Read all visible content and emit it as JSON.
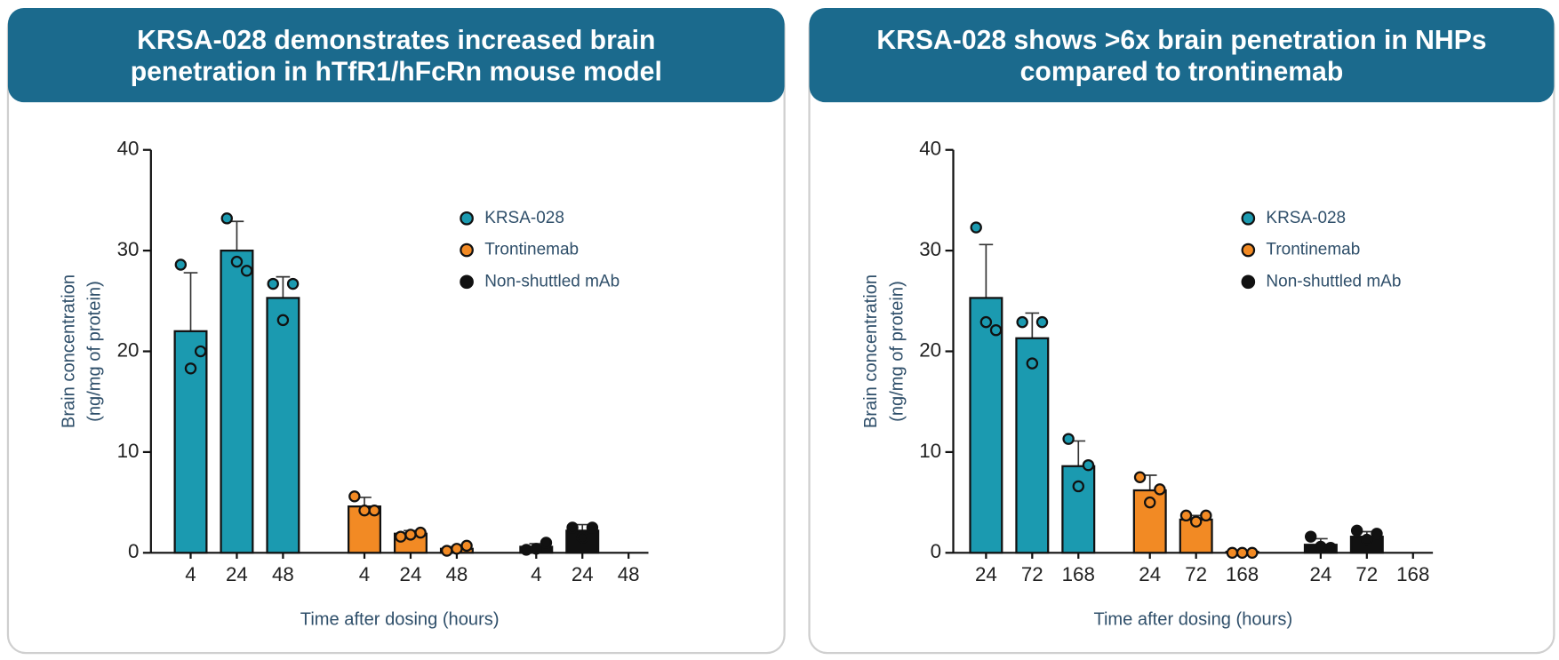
{
  "chart_data": [
    {
      "type": "bar",
      "title": [
        "KRSA-028 demonstrates increased brain",
        "penetration in hTfR1/hFcRn mouse model"
      ],
      "ylabel": [
        "Brain concentration",
        "(ng/mg of protein)"
      ],
      "xlabel": "Time after dosing (hours)",
      "categories": [
        "4",
        "24",
        "48"
      ],
      "ylim": [
        0,
        40
      ],
      "yticks": [
        0,
        10,
        20,
        30,
        40
      ],
      "series": [
        {
          "name": "KRSA-028",
          "color": "#1b9ab0",
          "values": [
            22,
            30,
            25.3
          ],
          "errors": [
            5.8,
            2.9,
            2.1
          ],
          "points": [
            [
              28.6,
              20,
              18.3
            ],
            [
              33.2,
              28,
              28.9
            ],
            [
              26.7,
              26.7,
              23.1
            ]
          ]
        },
        {
          "name": "Trontinemab",
          "color": "#f28a24",
          "values": [
            4.6,
            1.9,
            0.4
          ],
          "errors": [
            0.9,
            0.3,
            0.2
          ],
          "points": [
            [
              5.6,
              4.2,
              4.2
            ],
            [
              1.6,
              2,
              1.8
            ],
            [
              0.2,
              0.7,
              0.4
            ]
          ]
        },
        {
          "name": "Non-shuttled mAb",
          "color": "#111111",
          "values": [
            0.6,
            2.2,
            null
          ],
          "errors": [
            0.3,
            0.6,
            null
          ],
          "points": [
            [
              0.3,
              1,
              0.4
            ],
            [
              2.5,
              2.5,
              1.5
            ],
            null
          ]
        }
      ]
    },
    {
      "type": "bar",
      "title": [
        "KRSA-028 shows >6x brain penetration in NHPs",
        "compared to trontinemab"
      ],
      "ylabel": [
        "Brain concentration",
        "(ng/mg of protein)"
      ],
      "xlabel": "Time after dosing (hours)",
      "categories": [
        "24",
        "72",
        "168"
      ],
      "ylim": [
        0,
        40
      ],
      "yticks": [
        0,
        10,
        20,
        30,
        40
      ],
      "series": [
        {
          "name": "KRSA-028",
          "color": "#1b9ab0",
          "values": [
            25.3,
            21.3,
            8.6
          ],
          "errors": [
            5.3,
            2.5,
            2.5
          ],
          "points": [
            [
              32.3,
              22.1,
              22.9
            ],
            [
              22.9,
              22.9,
              18.8
            ],
            [
              11.3,
              8.7,
              6.6
            ]
          ]
        },
        {
          "name": "Trontinemab",
          "color": "#f28a24",
          "values": [
            6.2,
            3.3,
            0.1
          ],
          "errors": [
            1.5,
            0.4,
            0
          ],
          "points": [
            [
              7.5,
              6.3,
              5
            ],
            [
              3.7,
              3.7,
              3.1
            ],
            [
              0,
              0,
              0
            ]
          ]
        },
        {
          "name": "Non-shuttled mAb",
          "color": "#111111",
          "values": [
            0.8,
            1.6,
            null
          ],
          "errors": [
            0.6,
            0.5,
            null
          ],
          "points": [
            [
              1.6,
              0.5,
              0.6
            ],
            [
              2.2,
              1.9,
              1.3
            ],
            null
          ]
        }
      ]
    }
  ]
}
